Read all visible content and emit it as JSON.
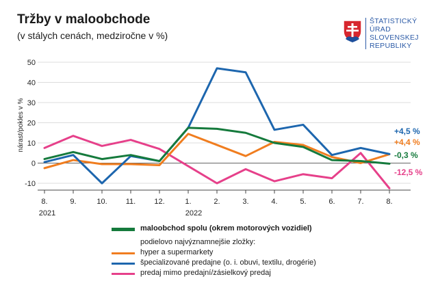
{
  "header": {
    "title": "Tržby v maloobchode",
    "subtitle": "(v stálych cenách, medziročne v %)"
  },
  "logo": {
    "lines": [
      "ŠTATISTICKÝ",
      "ÚRAD",
      "SLOVENSKEJ",
      "REPUBLIKY"
    ]
  },
  "chart_data": {
    "type": "line",
    "title": "Tržby v maloobchode",
    "subtitle": "(v stálych cenách, medziročne v %)",
    "ylabel": "nárast/pokles v %",
    "xlabel": "",
    "ylim": [
      -10,
      50
    ],
    "yticks": [
      -10,
      0,
      10,
      20,
      30,
      40,
      50
    ],
    "ytick_labels": [
      "-10",
      "0",
      "10",
      "20",
      "30",
      "40",
      "50"
    ],
    "categories": [
      "8.",
      "9.",
      "10.",
      "11.",
      "12.",
      "1.",
      "2.",
      "3.",
      "4.",
      "5.",
      "6.",
      "7.",
      "8."
    ],
    "year_labels": [
      {
        "index": 0,
        "label": "2021"
      },
      {
        "index": 5,
        "label": "2022"
      }
    ],
    "grid": "horizontal",
    "series": [
      {
        "name": "predaj mimo predajní/zásielkový predaj",
        "color": "#e6408a",
        "values": [
          7.5,
          13.5,
          8.5,
          11.5,
          7.0,
          -1.5,
          -10.0,
          -3.0,
          -9.0,
          -5.5,
          -7.5,
          5.0,
          -12.5
        ],
        "end_label": "-12,5 %"
      },
      {
        "name": "hyper a supermarkety",
        "color": "#f07d1f",
        "values": [
          -2.5,
          1.5,
          -0.5,
          -0.5,
          -1.0,
          14.5,
          9.0,
          3.5,
          10.5,
          9.0,
          3.0,
          0.0,
          4.4
        ],
        "end_label": "+4,4 %"
      },
      {
        "name": "špecializované predajne (o. i. obuvi, textilu, drogérie)",
        "color": "#1d66ae",
        "values": [
          0.5,
          4.0,
          -10.0,
          3.5,
          1.0,
          17.5,
          47.0,
          45.0,
          16.5,
          19.0,
          4.0,
          7.5,
          4.5
        ],
        "end_label": "+4,5 %"
      },
      {
        "name": "maloobchod spolu (okrem motorových vozidiel)",
        "color": "#157a3c",
        "values": [
          2.0,
          5.5,
          2.0,
          4.0,
          1.0,
          17.5,
          17.0,
          15.0,
          10.0,
          8.0,
          1.5,
          1.0,
          -0.3
        ],
        "end_label": "-0,3 %"
      }
    ]
  },
  "legend": {
    "main": {
      "label": "maloobchod spolu (okrem motorových vozidiel)",
      "color": "#157a3c"
    },
    "subheading": "podielovo najvýznamnejšie zložky:",
    "items": [
      {
        "label": "hyper a supermarkety",
        "color": "#f07d1f"
      },
      {
        "label": "špecializované predajne (o. i. obuvi, textilu, drogérie)",
        "color": "#1d66ae"
      },
      {
        "label": "predaj mimo predajní/zásielkový predaj",
        "color": "#e6408a"
      }
    ]
  }
}
